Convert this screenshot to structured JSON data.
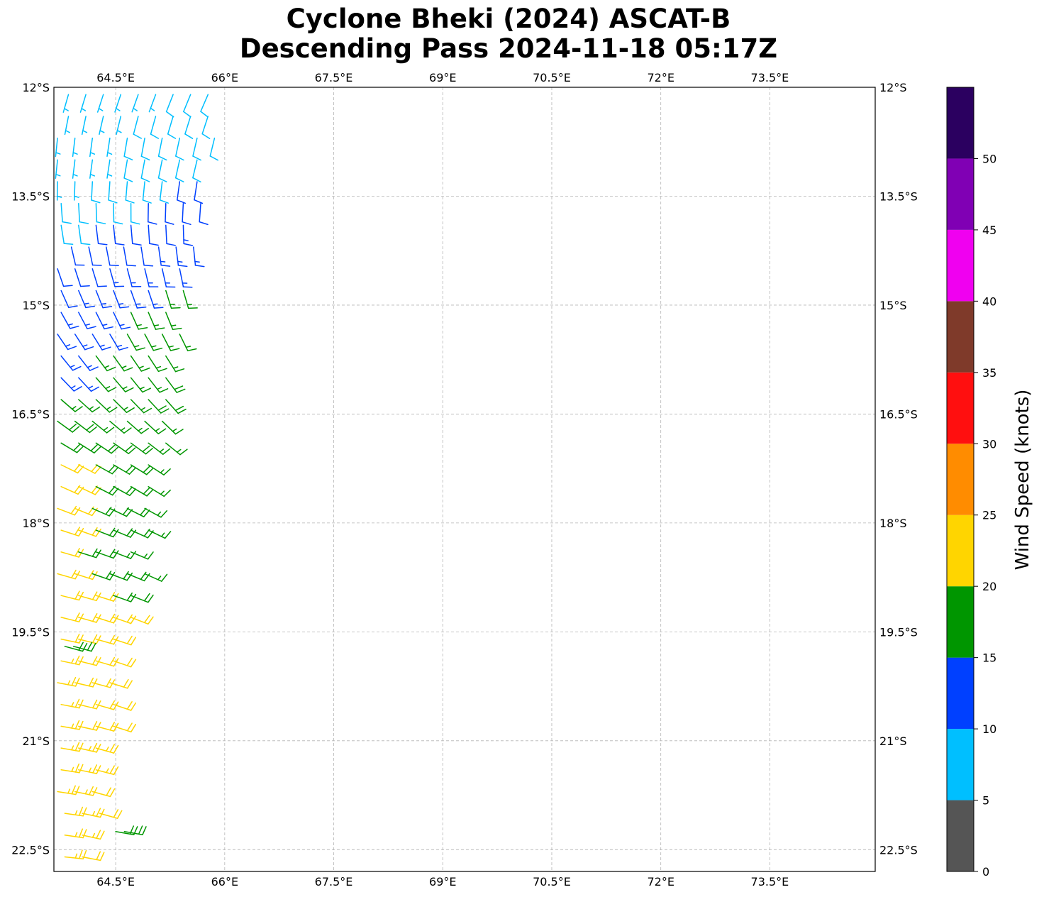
{
  "title": {
    "line1": "Cyclone Bheki (2024) ASCAT-B",
    "line2": "Descending Pass 2024-11-18 05:17Z"
  },
  "chart_data": {
    "type": "wind-barb map",
    "lon_ticks": [
      "64.5°E",
      "66°E",
      "67.5°E",
      "69°E",
      "70.5°E",
      "72°E",
      "73.5°E"
    ],
    "lat_ticks": [
      "12°S",
      "13.5°S",
      "15°S",
      "16.5°S",
      "18°S",
      "19.5°S",
      "21°S",
      "22.5°S"
    ],
    "lon_range": [
      63.65,
      74.95
    ],
    "lat_range": [
      -22.8,
      -12.0
    ],
    "grid": true,
    "colorbar": {
      "label": "Wind Speed (knots)",
      "bounds": [
        0,
        5,
        10,
        15,
        20,
        25,
        30,
        35,
        40,
        45,
        50,
        55
      ],
      "tick_labels": [
        "0",
        "5",
        "10",
        "15",
        "20",
        "25",
        "30",
        "35",
        "40",
        "45",
        "50"
      ],
      "colors": [
        "#555555",
        "#00bfff",
        "#0040ff",
        "#009600",
        "#ffd500",
        "#ff8c00",
        "#ff0f0f",
        "#7f3a2a",
        "#f000f0",
        "#8000b4",
        "#2b0060"
      ]
    },
    "swath_rows": [
      {
        "lat": -12.1,
        "lon_west": 63.85,
        "lon_east": 66.0,
        "speed": 7,
        "dir": 200
      },
      {
        "lat": -12.4,
        "lon_west": 63.85,
        "lon_east": 66.0,
        "speed": 8,
        "dir": 195
      },
      {
        "lat": -12.7,
        "lon_west": 63.7,
        "lon_east": 65.9,
        "speed": 8,
        "dir": 190
      },
      {
        "lat": -13.0,
        "lon_west": 63.7,
        "lon_east": 65.8,
        "speed": 8,
        "dir": 190
      },
      {
        "lat": -13.3,
        "lon_west": 63.7,
        "lon_east": 65.7,
        "speed": 9,
        "dir": 185
      },
      {
        "lat": -13.6,
        "lon_west": 63.75,
        "lon_east": 65.7,
        "speed": 10,
        "dir": 180
      },
      {
        "lat": -13.9,
        "lon_west": 63.75,
        "lon_east": 65.6,
        "speed": 11,
        "dir": 175
      },
      {
        "lat": -14.2,
        "lon_west": 63.65,
        "lon_east": 65.6,
        "speed": 12,
        "dir": 170
      },
      {
        "lat": -14.5,
        "lon_west": 63.7,
        "lon_east": 65.5,
        "speed": 13,
        "dir": 165
      },
      {
        "lat": -14.8,
        "lon_west": 63.75,
        "lon_east": 65.5,
        "speed": 14,
        "dir": 160
      },
      {
        "lat": -15.1,
        "lon_west": 63.75,
        "lon_east": 65.4,
        "speed": 15,
        "dir": 155
      },
      {
        "lat": -15.4,
        "lon_west": 63.7,
        "lon_east": 65.4,
        "speed": 15,
        "dir": 150
      },
      {
        "lat": -15.7,
        "lon_west": 63.75,
        "lon_east": 65.4,
        "speed": 16,
        "dir": 145
      },
      {
        "lat": -16.0,
        "lon_west": 63.75,
        "lon_east": 65.3,
        "speed": 16,
        "dir": 140
      },
      {
        "lat": -16.3,
        "lon_west": 63.75,
        "lon_east": 65.3,
        "speed": 17,
        "dir": 135
      },
      {
        "lat": -16.6,
        "lon_west": 63.7,
        "lon_east": 65.2,
        "speed": 17,
        "dir": 130
      },
      {
        "lat": -16.9,
        "lon_west": 63.75,
        "lon_east": 65.2,
        "speed": 18,
        "dir": 125
      },
      {
        "lat": -17.2,
        "lon_west": 63.75,
        "lon_east": 65.1,
        "speed": 19,
        "dir": 120
      },
      {
        "lat": -17.5,
        "lon_west": 63.75,
        "lon_east": 65.0,
        "speed": 19,
        "dir": 118
      },
      {
        "lat": -17.8,
        "lon_west": 63.7,
        "lon_east": 65.0,
        "speed": 19,
        "dir": 115
      },
      {
        "lat": -18.1,
        "lon_west": 63.75,
        "lon_east": 65.0,
        "speed": 19,
        "dir": 112
      },
      {
        "lat": -18.4,
        "lon_west": 63.75,
        "lon_east": 64.9,
        "speed": 18,
        "dir": 110
      },
      {
        "lat": -18.7,
        "lon_west": 63.7,
        "lon_east": 64.9,
        "speed": 19,
        "dir": 110
      },
      {
        "lat": -19.0,
        "lon_west": 63.75,
        "lon_east": 64.8,
        "speed": 20,
        "dir": 108
      },
      {
        "lat": -19.3,
        "lon_west": 63.75,
        "lon_east": 64.8,
        "speed": 21,
        "dir": 108
      },
      {
        "lat": -19.6,
        "lon_west": 63.75,
        "lon_east": 64.7,
        "speed": 21,
        "dir": 106
      },
      {
        "lat": -19.9,
        "lon_west": 63.75,
        "lon_east": 64.6,
        "speed": 22,
        "dir": 106
      },
      {
        "lat": -20.2,
        "lon_west": 63.7,
        "lon_east": 64.6,
        "speed": 22,
        "dir": 105
      },
      {
        "lat": -20.5,
        "lon_west": 63.75,
        "lon_east": 64.5,
        "speed": 22,
        "dir": 105
      },
      {
        "lat": -20.8,
        "lon_west": 63.75,
        "lon_east": 64.5,
        "speed": 22,
        "dir": 104
      },
      {
        "lat": -21.1,
        "lon_west": 63.75,
        "lon_east": 64.4,
        "speed": 23,
        "dir": 104
      },
      {
        "lat": -21.4,
        "lon_west": 63.75,
        "lon_east": 64.4,
        "speed": 23,
        "dir": 103
      },
      {
        "lat": -21.7,
        "lon_west": 63.7,
        "lon_east": 64.3,
        "speed": 23,
        "dir": 103
      },
      {
        "lat": -22.0,
        "lon_west": 63.8,
        "lon_east": 64.3,
        "speed": 23,
        "dir": 102
      },
      {
        "lat": -22.3,
        "lon_west": 63.8,
        "lon_east": 64.25,
        "speed": 23,
        "dir": 102
      },
      {
        "lat": -22.6,
        "lon_west": 63.8,
        "lon_east": 64.2,
        "speed": 22,
        "dir": 100
      }
    ],
    "green_patches": [
      {
        "lat": -19.7,
        "lon_west": 63.8,
        "lon_east": 64.0,
        "speed": 18,
        "dir": 105
      },
      {
        "lat": -22.25,
        "lon_west": 64.5,
        "lon_east": 64.65,
        "speed": 18,
        "dir": 100
      }
    ]
  }
}
